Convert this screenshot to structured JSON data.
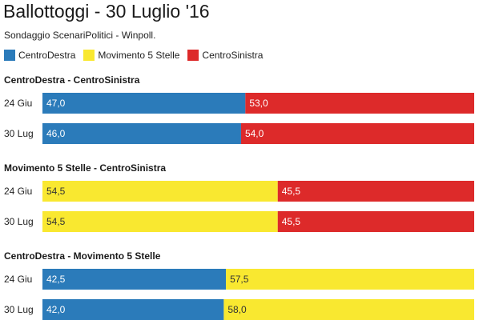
{
  "title": "Ballottoggi - 30 Luglio '16",
  "subtitle": "Sondaggio ScenariPolitici - Winpoll.",
  "colors": {
    "CentroDestra": "#2b7bba",
    "Movimento 5 Stelle": "#f9e830",
    "CentroSinistra": "#dd2a2a"
  },
  "legend": [
    {
      "label": "CentroDestra",
      "color": "#2b7bba"
    },
    {
      "label": "Movimento 5 Stelle",
      "color": "#f9e830"
    },
    {
      "label": "CentroSinistra",
      "color": "#dd2a2a"
    }
  ],
  "chart_data": [
    {
      "type": "bar",
      "stacked": true,
      "orientation": "horizontal",
      "title": "CentroDestra - CentroSinistra",
      "categories": [
        "24 Giu",
        "30 Lug"
      ],
      "series": [
        {
          "name": "CentroDestra",
          "values": [
            47.0,
            46.0
          ],
          "labels": [
            "47,0",
            "46,0"
          ]
        },
        {
          "name": "CentroSinistra",
          "values": [
            53.0,
            54.0
          ],
          "labels": [
            "53,0",
            "54,0"
          ]
        }
      ],
      "xlim": [
        0,
        100
      ]
    },
    {
      "type": "bar",
      "stacked": true,
      "orientation": "horizontal",
      "title": "Movimento 5 Stelle - CentroSinistra",
      "categories": [
        "24 Giu",
        "30 Lug"
      ],
      "series": [
        {
          "name": "Movimento 5 Stelle",
          "values": [
            54.5,
            54.5
          ],
          "labels": [
            "54,5",
            "54,5"
          ]
        },
        {
          "name": "CentroSinistra",
          "values": [
            45.5,
            45.5
          ],
          "labels": [
            "45,5",
            "45,5"
          ]
        }
      ],
      "xlim": [
        0,
        100
      ]
    },
    {
      "type": "bar",
      "stacked": true,
      "orientation": "horizontal",
      "title": "CentroDestra - Movimento 5 Stelle",
      "categories": [
        "24 Giu",
        "30 Lug"
      ],
      "series": [
        {
          "name": "CentroDestra",
          "values": [
            42.5,
            42.0
          ],
          "labels": [
            "42,5",
            "42,0"
          ]
        },
        {
          "name": "Movimento 5 Stelle",
          "values": [
            57.5,
            58.0
          ],
          "labels": [
            "57,5",
            "58,0"
          ]
        }
      ],
      "xlim": [
        0,
        100
      ]
    }
  ]
}
